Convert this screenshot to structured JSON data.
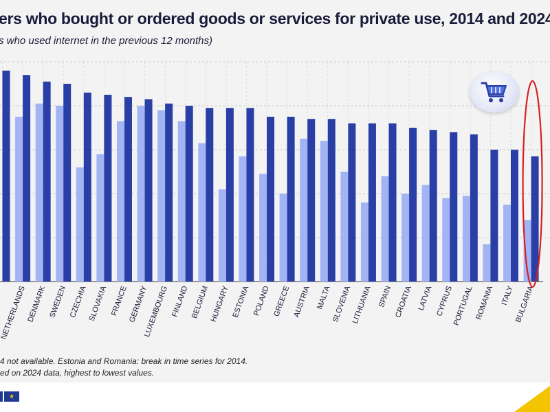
{
  "header": {
    "title": "ers who bought or ordered goods or services for private use, 2014 and 2024",
    "subtitle": "s who used internet in the previous 12 months)"
  },
  "notes": {
    "line1": "4 not available. Estonia and Romania: break in time series for 2014.",
    "line2": "ed on 2024 data, highest to lowest values."
  },
  "colors": {
    "series_2014": "#a3b4f5",
    "series_2024": "#2a3fa6",
    "highlight": "#d62020",
    "grid": "#c9c9c9"
  },
  "icons": {
    "badge": "shopping-cart-icon",
    "flag": "eu-flag-icon"
  },
  "chart_data": {
    "type": "bar",
    "title": "ers who bought or ordered goods or services for private use, 2014 and 2024",
    "ylim": [
      0,
      100
    ],
    "grid": true,
    "legend": "none",
    "categories": [
      "",
      "NETHERLANDS",
      "DENMARK",
      "SWEDEN",
      "CZECHIA",
      "SLOVAKIA",
      "FRANCE",
      "GERMANY",
      "LUXEMBOURG",
      "FINLAND",
      "BELGIUM",
      "HUNGARY",
      "ESTONIA",
      "POLAND",
      "GREECE",
      "AUSTRIA",
      "MALTA",
      "SLOVENIA",
      "LITHUANIA",
      "SPAIN",
      "CROATIA",
      "LATVIA",
      "CYPRUS",
      "PORTUGAL",
      "ROMANIA",
      "ITALY",
      "BULGARIA"
    ],
    "series": [
      {
        "name": "2014",
        "values": [
          null,
          75,
          81,
          80,
          52,
          58,
          73,
          80,
          78,
          73,
          63,
          42,
          57,
          49,
          40,
          65,
          64,
          50,
          36,
          48,
          40,
          44,
          38,
          39,
          17,
          35,
          28
        ]
      },
      {
        "name": "2024",
        "values": [
          96,
          94,
          91,
          90,
          86,
          85,
          84,
          83,
          81,
          80,
          79,
          79,
          79,
          75,
          75,
          74,
          74,
          72,
          72,
          72,
          70,
          69,
          68,
          67,
          60,
          60,
          57
        ]
      }
    ],
    "highlight": "BULGARIA"
  }
}
